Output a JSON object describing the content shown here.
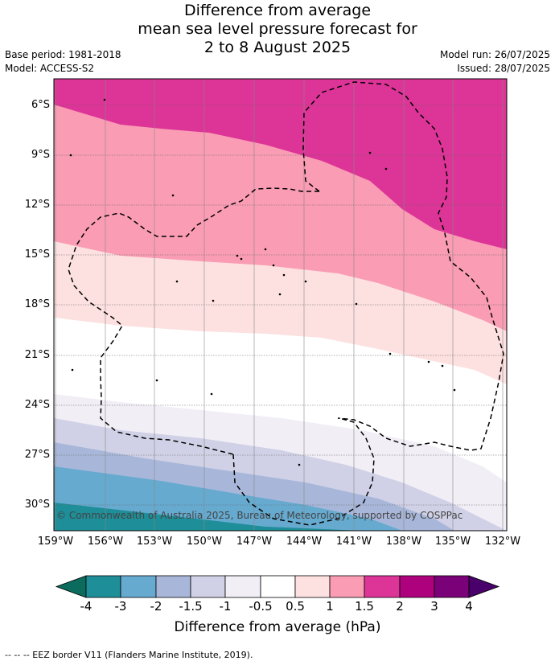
{
  "header": {
    "title_lines": [
      "Difference from average",
      "mean sea level pressure forecast for",
      "2 to 8 August 2025"
    ],
    "base_period": "Base period: 1981-2018",
    "model": "Model: ACCESS-S2",
    "model_run": "Model run: 26/07/2025",
    "issued": "Issued: 28/07/2025"
  },
  "map": {
    "lat_labels": [
      "6°S",
      "9°S",
      "12°S",
      "15°S",
      "18°S",
      "21°S",
      "24°S",
      "27°S",
      "30°S"
    ],
    "lon_labels": [
      "159°W",
      "156°W",
      "153°W",
      "150°W",
      "147°W",
      "144°W",
      "141°W",
      "138°W",
      "135°W",
      "132°W"
    ],
    "copyright": "© Commonwealth of Australia 2025, Bureau of Meteorology, supported by COSPPac"
  },
  "colorbar": {
    "ticks": [
      "-4",
      "-3",
      "-2",
      "-1.5",
      "-1",
      "-0.5",
      "0.5",
      "1",
      "1.5",
      "2",
      "3",
      "4"
    ],
    "title": "Difference from average (hPa)",
    "colors": {
      "below_-4": "#0b6b5c",
      "-4_-3": "#1e8e98",
      "-3_-2": "#66aad0",
      "-2_-1.5": "#a8b7d9",
      "-1.5_-1": "#d0d1e6",
      "-1_-0.5": "#f1eef6",
      "-0.5_0.5": "#ffffff",
      "0.5_1": "#fde0e0",
      "1_1.5": "#f99cb4",
      "1.5_2": "#dd3497",
      "2_3": "#ae017e",
      "3_4": "#7a0177",
      "above_4": "#49006a"
    }
  },
  "footer": {
    "legend": "--  --  -- EEZ border V11 (Flanders Marine Institute, 2019)."
  }
}
